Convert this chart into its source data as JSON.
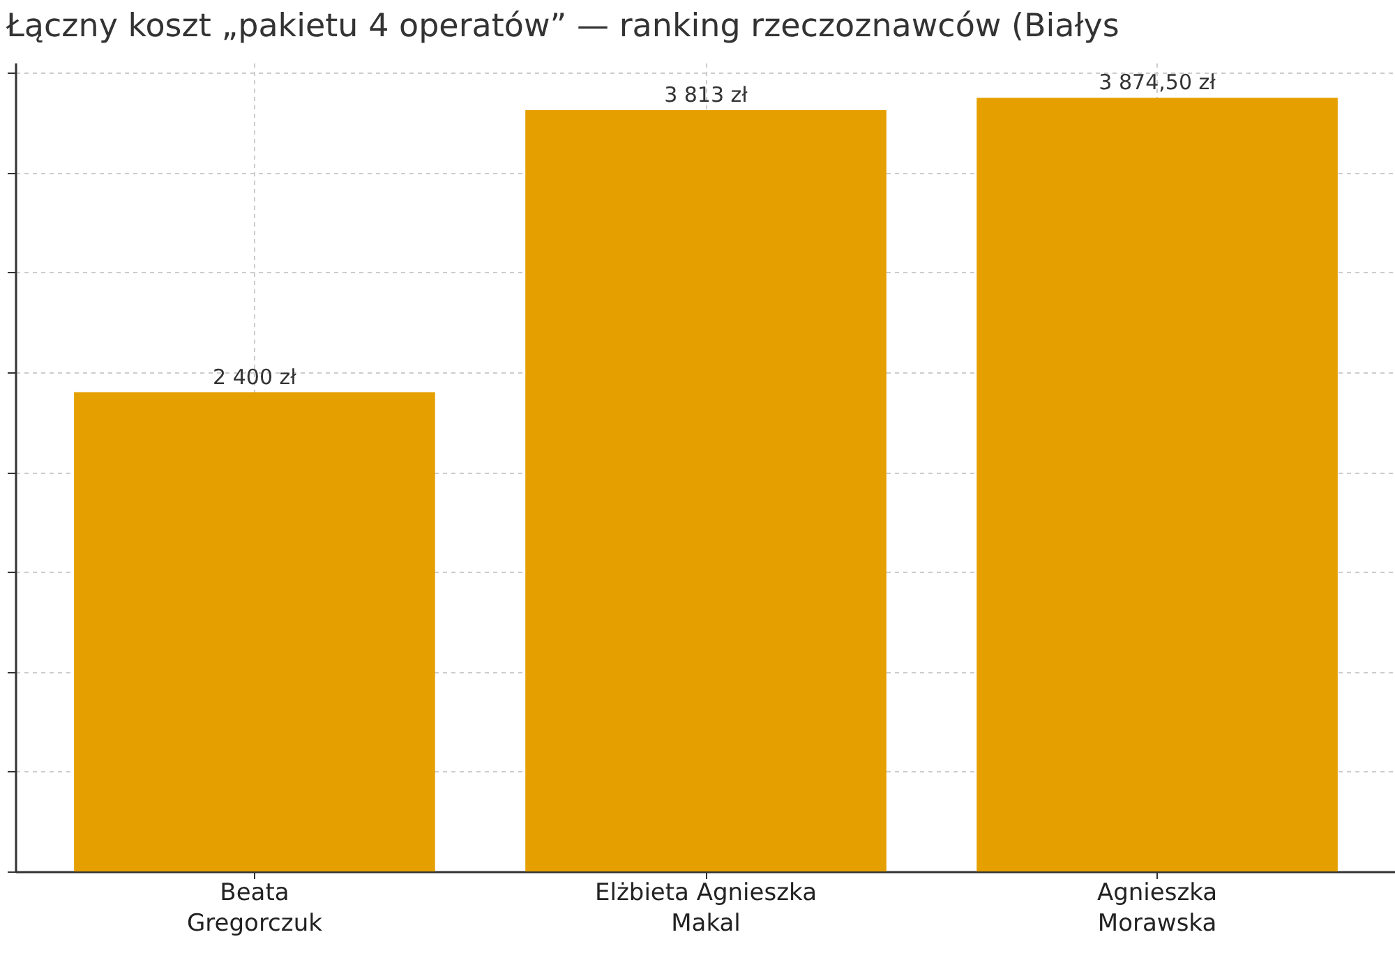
{
  "chart_data": {
    "type": "bar",
    "title": "Łączny koszt „pakietu 4 operatów” — ranking rzeczoznawców (Białys",
    "categories": [
      "Beata\nGregorczuk",
      "Elżbieta Agnieszka\nMakal",
      "Agnieszka\nMorawska"
    ],
    "values": [
      2400,
      3813,
      3874.5
    ],
    "value_labels": [
      "2 400 zł",
      "3 813 zł",
      "3 874,50 zł"
    ],
    "color": "#e5a000",
    "ylim": [
      0,
      4050
    ],
    "yticks": [
      {
        "value": 0,
        "label": null
      },
      {
        "value": 500,
        "label": null
      },
      {
        "value": 1000,
        "label": null
      },
      {
        "value": 1500,
        "label": null
      },
      {
        "value": 2000,
        "label": null
      },
      {
        "value": 2500,
        "label": null
      },
      {
        "value": 3000,
        "label": null
      },
      {
        "value": 3500,
        "label": null
      },
      {
        "value": 4000,
        "label": null
      }
    ],
    "grid": true,
    "tick_labels": "x"
  }
}
